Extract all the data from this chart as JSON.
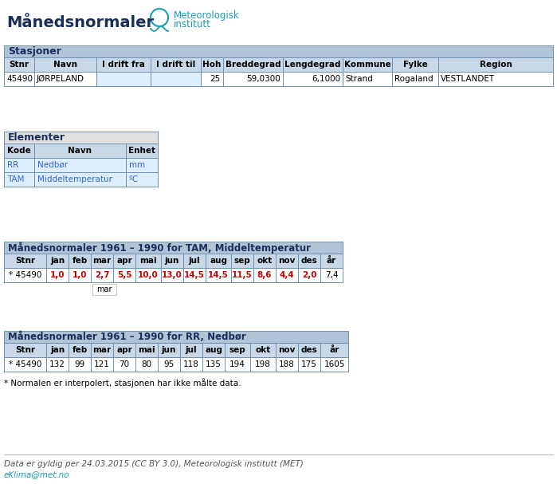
{
  "title": "Månedsnormaler",
  "logo_text1": "Meteorologisk",
  "logo_text2": "institutt",
  "bg_color": "#ffffff",
  "section1_title": "Stasjoner",
  "station_headers": [
    "Stnr",
    "Navn",
    "I drift fra",
    "I drift til",
    "Hoh",
    "Breddegrad",
    "Lengdegrad",
    "Kommune",
    "Fylke",
    "Region"
  ],
  "station_row": [
    "45490",
    "JØRPELAND",
    "",
    "",
    "25",
    "59,0300",
    "6,1000",
    "Strand",
    "Rogaland",
    "VESTLANDET"
  ],
  "section2_title": "Elementer",
  "elem_headers": [
    "Kode",
    "Navn",
    "Enhet"
  ],
  "elem_rows": [
    [
      "RR",
      "Nedbør",
      "mm"
    ],
    [
      "TAM",
      "Middeltemperatur",
      "ºC"
    ]
  ],
  "section3_title": "Månedsnormaler 1961 – 1990 for TAM, Middeltemperatur",
  "tam_headers": [
    "Stnr",
    "jan",
    "feb",
    "mar",
    "apr",
    "mai",
    "jun",
    "jul",
    "aug",
    "sep",
    "okt",
    "nov",
    "des",
    "år"
  ],
  "tam_row": [
    "* 45490",
    "1,0",
    "1,0",
    "2,7",
    "5,5",
    "10,0",
    "13,0",
    "14,5",
    "14,5",
    "11,5",
    "8,6",
    "4,4",
    "2,0",
    "7,4"
  ],
  "tam_red_cols": [
    1,
    2,
    3,
    4,
    5,
    6,
    7,
    8,
    9,
    10,
    11,
    12
  ],
  "section4_title": "Månedsnormaler 1961 – 1990 for RR, Nedbør",
  "rr_headers": [
    "Stnr",
    "jan",
    "feb",
    "mar",
    "apr",
    "mai",
    "jun",
    "jul",
    "aug",
    "sep",
    "okt",
    "nov",
    "des",
    "år"
  ],
  "rr_row": [
    "* 45490",
    "132",
    "99",
    "121",
    "70",
    "80",
    "95",
    "118",
    "135",
    "194",
    "198",
    "188",
    "175",
    "1605"
  ],
  "footnote": "* Normalen er interpolert, stasjonen har ikke målte data.",
  "footer1": "Data er gyldig per 24.03.2015 (CC BY 3.0), Meteorologisk institutt (MET)",
  "footer2": "eKlima@met.no",
  "header_bg": "#c8d8e8",
  "section_title_bg": "#b0c4d8",
  "table_border": "#7090b0",
  "cell_bg_white": "#ffffff",
  "cell_bg_light": "#ddeeff",
  "red_color": "#cc0000",
  "black_color": "#000000",
  "teal_color": "#1a9db0",
  "title_color": "#1a2e5a",
  "section_header_text": "#1a2e5a",
  "elem_text_color": "#3366cc",
  "light_gray_bg": "#e0e0e0"
}
